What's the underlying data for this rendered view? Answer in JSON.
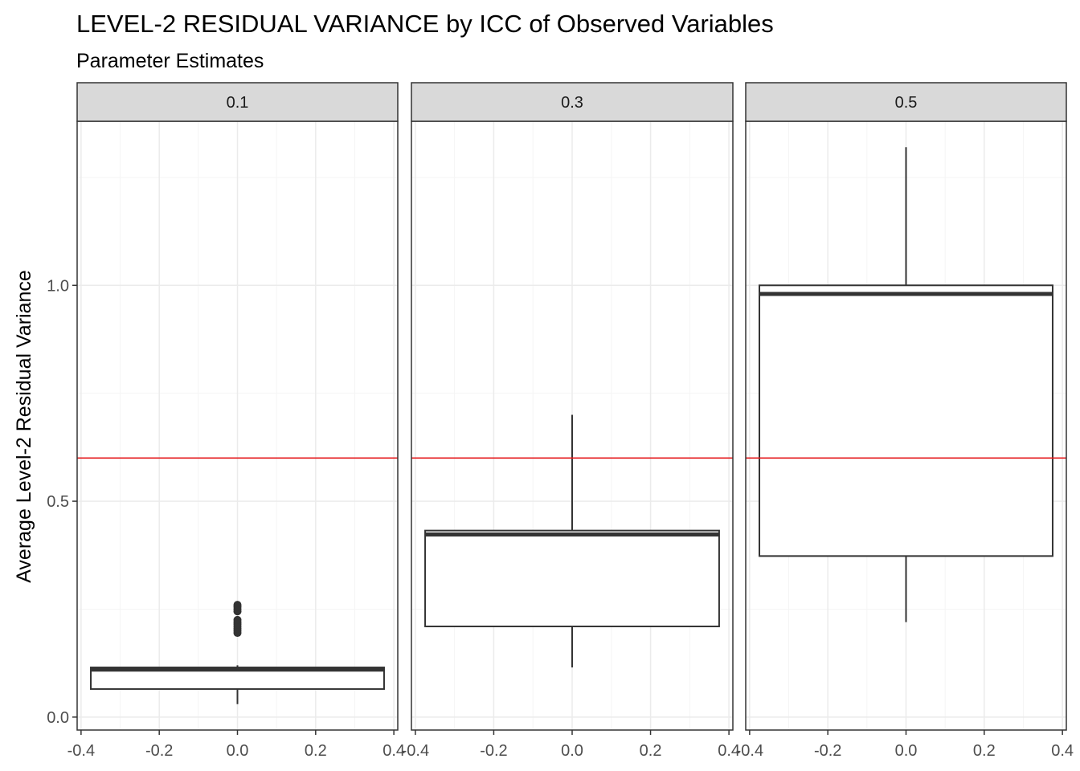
{
  "chart_data": {
    "type": "boxplot",
    "title": "LEVEL-2 RESIDUAL VARIANCE by ICC of Observed Variables",
    "subtitle": "Parameter Estimates",
    "ylabel": "Average Level-2 Residual Variance",
    "xlabel": "",
    "ylim": [
      -0.03,
      1.38
    ],
    "xlim": [
      -0.41,
      0.41
    ],
    "y_ticks": [
      0.0,
      0.5,
      1.0
    ],
    "y_tick_labels": [
      "0.0",
      "0.5",
      "1.0"
    ],
    "x_ticks": [
      -0.4,
      -0.2,
      0.0,
      0.2,
      0.4
    ],
    "x_tick_labels": [
      "-0.4",
      "-0.2",
      "0.0",
      "0.2",
      "0.4"
    ],
    "grid": true,
    "reference_line": {
      "y": 0.6,
      "color": "#e41a1c"
    },
    "box_x_range": [
      -0.375,
      0.375
    ],
    "colors": {
      "box_line": "#333333",
      "strip_fill": "#d9d9d9",
      "panel_border": "#333333",
      "grid_major": "#ebebeb",
      "grid_minor": "#f5f5f5"
    },
    "facets": [
      {
        "label": "0.1",
        "box": {
          "min": 0.03,
          "q1": 0.065,
          "median": 0.11,
          "q3": 0.115,
          "max": 0.12
        },
        "outliers": [
          0.195,
          0.2,
          0.205,
          0.21,
          0.215,
          0.22,
          0.225,
          0.245,
          0.25,
          0.255,
          0.26
        ]
      },
      {
        "label": "0.3",
        "box": {
          "min": 0.115,
          "q1": 0.21,
          "median": 0.423,
          "q3": 0.432,
          "max": 0.7
        },
        "outliers": []
      },
      {
        "label": "0.5",
        "box": {
          "min": 0.22,
          "q1": 0.373,
          "median": 0.98,
          "q3": 1.0,
          "max": 1.32
        },
        "outliers": []
      }
    ]
  }
}
